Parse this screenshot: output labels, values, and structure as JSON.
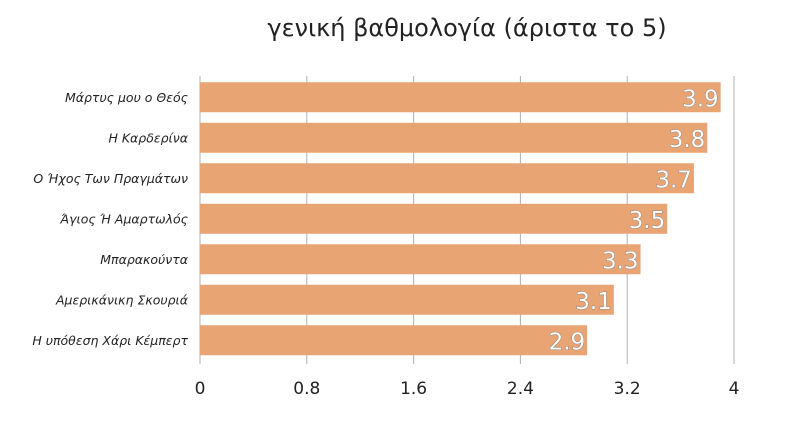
{
  "chart_data": {
    "type": "bar",
    "orientation": "horizontal",
    "title": "γενική βαθμολογία (άριστα το 5)",
    "categories": [
      "Μάρτυς μου ο Θεός",
      "Η Καρδερίνα",
      "Ο Ήχος Των Πραγμάτων",
      "Άγιος Ή Αμαρτωλός",
      "Μπαρακούντα",
      "Αμερικάνικη Σκουριά",
      "Η υπόθεση Χάρι Κέμπερτ"
    ],
    "values": [
      3.9,
      3.8,
      3.7,
      3.5,
      3.3,
      3.1,
      2.9
    ],
    "xlim": [
      0,
      4
    ],
    "xticks": [
      0,
      0.8,
      1.6,
      2.4,
      3.2,
      4
    ],
    "xtick_labels": [
      "0",
      "0.8",
      "1.6",
      "2.4",
      "3.2",
      "4"
    ],
    "data_labels": [
      "3.9",
      "3.8",
      "3.7",
      "3.5",
      "3.3",
      "3.1",
      "2.9"
    ],
    "xlabel": "",
    "ylabel": "",
    "grid": "vertical",
    "legend": "none",
    "colors": {
      "bar": "#e8a473",
      "grid": "#b0b0b0"
    }
  }
}
